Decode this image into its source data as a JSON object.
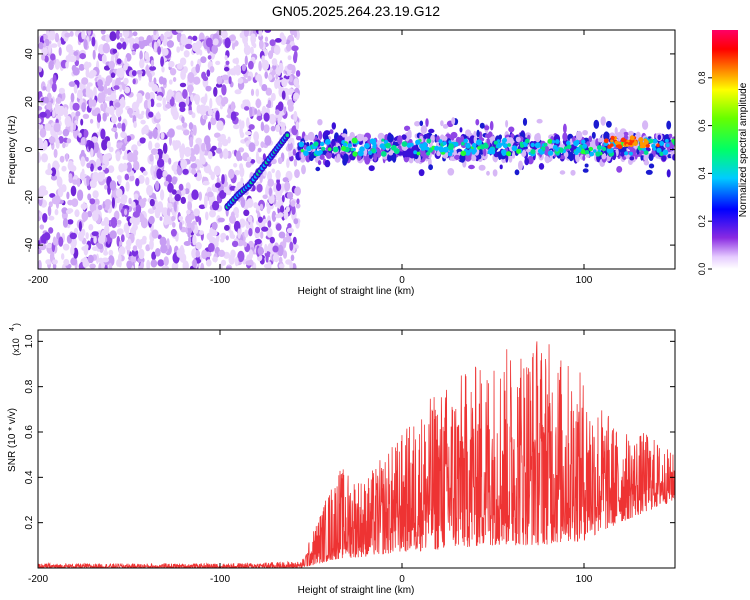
{
  "title": "GN05.2025.264.23.19.G12",
  "chart_data": [
    {
      "type": "heatmap",
      "name": "spectrogram",
      "xlabel": "Height of straight line (km)",
      "ylabel": "Frequency (Hz)",
      "xlim": [
        -200,
        150
      ],
      "ylim": [
        -50,
        50
      ],
      "xticks": [
        -200,
        -100,
        0,
        100
      ],
      "yticks": [
        -40,
        -20,
        0,
        20,
        40
      ],
      "noise_region_end_km": -57,
      "signal_track": [
        {
          "x": -96,
          "y": -24
        },
        {
          "x": -90,
          "y": -19
        },
        {
          "x": -84,
          "y": -15
        },
        {
          "x": -78,
          "y": -9
        },
        {
          "x": -72,
          "y": -3
        },
        {
          "x": -67,
          "y": 2
        },
        {
          "x": -62,
          "y": 7
        }
      ],
      "signal_band": {
        "x_start": -57,
        "x_end": 150,
        "center_hz": 1,
        "half_width_hz": 5
      },
      "colorbar": {
        "label": "Normalized spectral amplitude",
        "range": [
          0,
          1
        ],
        "ticks": [
          "0.0",
          "0.2",
          "0.4",
          "0.6",
          "0.8"
        ]
      }
    },
    {
      "type": "line",
      "name": "snr",
      "xlabel": "Height of straight line (km)",
      "ylabel": "SNR (10 * v/v)",
      "scale_note": "(x10",
      "scale_exp": "4",
      "xlim": [
        -200,
        150
      ],
      "ylim": [
        0,
        1.05
      ],
      "xticks": [
        -200,
        -100,
        0,
        100
      ],
      "yticks": [
        "0.2",
        "0.4",
        "0.6",
        "0.8",
        "1.0"
      ],
      "color": "#ee3333",
      "envelope": [
        {
          "x": -200,
          "lo": 0.0,
          "hi": 0.02
        },
        {
          "x": -100,
          "lo": 0.0,
          "hi": 0.02
        },
        {
          "x": -55,
          "lo": 0.0,
          "hi": 0.03
        },
        {
          "x": -45,
          "lo": 0.02,
          "hi": 0.25
        },
        {
          "x": -35,
          "lo": 0.04,
          "hi": 0.45
        },
        {
          "x": -20,
          "lo": 0.05,
          "hi": 0.4
        },
        {
          "x": 0,
          "lo": 0.07,
          "hi": 0.6
        },
        {
          "x": 20,
          "lo": 0.08,
          "hi": 0.8
        },
        {
          "x": 50,
          "lo": 0.1,
          "hi": 0.95
        },
        {
          "x": 75,
          "lo": 0.1,
          "hi": 1.05
        },
        {
          "x": 100,
          "lo": 0.12,
          "hi": 0.85
        },
        {
          "x": 120,
          "lo": 0.2,
          "hi": 0.6
        },
        {
          "x": 135,
          "lo": 0.25,
          "hi": 0.6
        },
        {
          "x": 150,
          "lo": 0.3,
          "hi": 0.5
        }
      ]
    }
  ]
}
